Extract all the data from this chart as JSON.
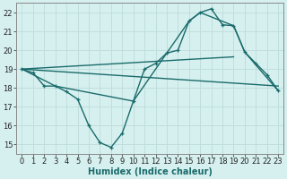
{
  "xlabel": "Humidex (Indice chaleur)",
  "xlim": [
    -0.5,
    23.5
  ],
  "ylim": [
    14.5,
    22.5
  ],
  "xticks": [
    0,
    1,
    2,
    3,
    4,
    5,
    6,
    7,
    8,
    9,
    10,
    11,
    12,
    13,
    14,
    15,
    16,
    17,
    18,
    19,
    20,
    21,
    22,
    23
  ],
  "yticks": [
    15,
    16,
    17,
    18,
    19,
    20,
    21,
    22
  ],
  "bg_color": "#d6f0ef",
  "grid_color": "#c0dedd",
  "line_color": "#1a6b6b",
  "series_main": {
    "x": [
      0,
      1,
      2,
      3,
      4,
      5,
      6,
      7,
      8,
      9,
      10,
      11,
      12,
      13,
      14,
      15,
      16,
      17,
      18,
      19,
      20,
      21,
      22,
      23
    ],
    "y": [
      19.0,
      18.8,
      18.1,
      18.1,
      17.8,
      17.4,
      16.0,
      15.1,
      14.85,
      15.6,
      17.3,
      19.0,
      19.3,
      19.85,
      20.0,
      21.55,
      22.0,
      22.2,
      21.35,
      21.3,
      19.9,
      19.3,
      18.7,
      17.85
    ]
  },
  "series_upper_envelope": {
    "x": [
      0,
      3,
      10,
      15,
      16,
      19,
      20,
      23
    ],
    "y": [
      19.0,
      18.1,
      17.3,
      21.55,
      22.0,
      21.3,
      19.9,
      17.85
    ]
  },
  "series_straight1": {
    "x": [
      0,
      23
    ],
    "y": [
      19.0,
      18.1
    ]
  },
  "series_straight2": {
    "x": [
      0,
      19
    ],
    "y": [
      19.0,
      19.65
    ]
  }
}
